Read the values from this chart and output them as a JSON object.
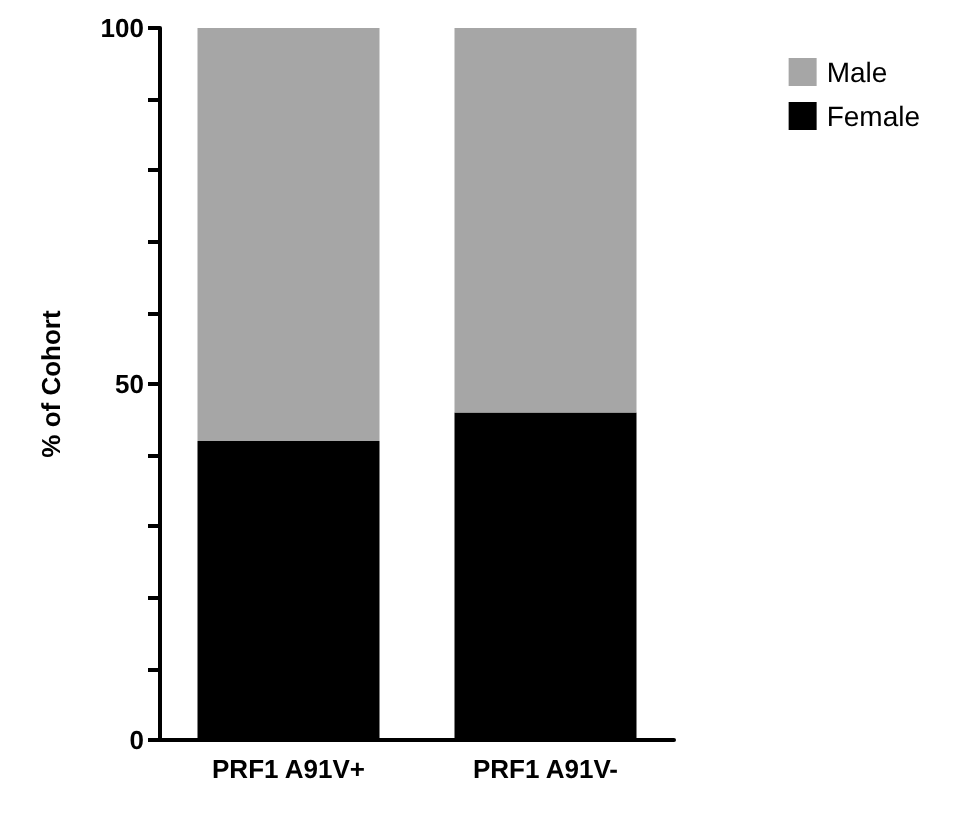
{
  "chart_data": {
    "type": "bar",
    "stacked": true,
    "categories": [
      "PRF1 A91V+",
      "PRF1 A91V-"
    ],
    "series": [
      {
        "name": "Female",
        "color": "#000000",
        "values": [
          42,
          46
        ]
      },
      {
        "name": "Male",
        "color": "#a6a6a6",
        "values": [
          58,
          54
        ]
      }
    ],
    "ylabel": "% of Cohort",
    "ylim": [
      0,
      100
    ],
    "yticks": [
      0,
      {
        "value": 10,
        "label": null
      },
      {
        "value": 20,
        "label": null
      },
      {
        "value": 30,
        "label": null
      },
      {
        "value": 40,
        "label": null
      },
      50,
      {
        "value": 60,
        "label": null
      },
      {
        "value": 70,
        "label": null
      },
      {
        "value": 80,
        "label": null
      },
      {
        "value": 90,
        "label": null
      },
      100
    ],
    "grid": false,
    "legend": "top right"
  }
}
